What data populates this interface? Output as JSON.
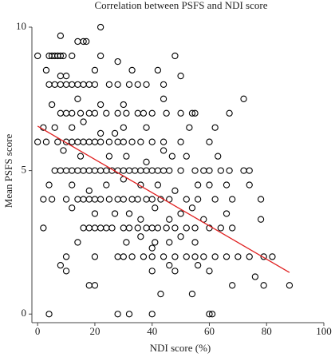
{
  "chart_data": {
    "type": "scatter",
    "title": "Correlation between PSFS and NDI score",
    "x_label": "NDI score (%)",
    "y_label": "Mean PSFS score",
    "x": [
      0,
      4,
      5,
      6,
      7,
      8,
      9,
      12,
      14,
      16,
      17,
      22,
      8,
      22,
      48,
      3,
      8,
      10,
      20,
      28,
      33,
      42,
      50,
      4,
      6,
      8,
      10,
      12,
      14,
      16,
      18,
      20,
      25,
      28,
      32,
      35,
      38,
      44,
      72,
      5,
      14,
      22,
      30,
      44,
      8,
      10,
      12,
      15,
      18,
      20,
      24,
      28,
      31,
      35,
      37,
      40,
      45,
      50,
      54,
      55,
      67,
      2,
      6,
      12,
      16,
      22,
      27,
      30,
      38,
      53,
      62,
      0,
      3,
      7,
      10,
      12,
      14,
      16,
      18,
      20,
      22,
      25,
      28,
      30,
      33,
      36,
      40,
      44,
      50,
      60,
      9,
      15,
      25,
      31,
      38,
      44,
      47,
      52,
      63,
      6,
      8,
      10,
      12,
      14,
      16,
      18,
      20,
      22,
      24,
      26,
      28,
      30,
      32,
      34,
      36,
      38,
      40,
      42,
      44,
      46,
      50,
      55,
      58,
      60,
      64,
      67,
      72,
      74,
      4,
      12,
      18,
      24,
      30,
      36,
      42,
      48,
      56,
      60,
      66,
      74,
      2,
      5,
      10,
      14,
      16,
      18,
      20,
      22,
      25,
      28,
      30,
      33,
      35,
      38,
      40,
      43,
      46,
      52,
      56,
      62,
      68,
      78,
      12,
      20,
      27,
      32,
      36,
      41,
      46,
      50,
      54,
      58,
      66,
      78,
      2,
      16,
      18,
      20,
      22,
      24,
      26,
      30,
      32,
      35,
      38,
      40,
      42,
      45,
      48,
      52,
      55,
      60,
      64,
      68,
      14,
      31,
      36,
      41,
      46,
      50,
      55,
      10,
      20,
      28,
      30,
      33,
      37,
      40,
      44,
      48,
      52,
      55,
      58,
      62,
      66,
      70,
      74,
      79,
      82,
      8,
      40,
      46,
      56,
      76,
      10,
      18,
      20,
      40,
      48,
      60,
      68,
      79,
      88,
      43,
      54,
      4,
      28,
      32,
      40,
      60,
      61
    ],
    "values": [
      9,
      9,
      9,
      9,
      9,
      9,
      9,
      9,
      9.5,
      9.5,
      9.5,
      10,
      9.7,
      9,
      9,
      8.5,
      8.3,
      8.3,
      8.5,
      8.8,
      8.5,
      8.5,
      8.3,
      8,
      8,
      8,
      8,
      8,
      8,
      8,
      8,
      8,
      8,
      8,
      8,
      8,
      8,
      8,
      7.5,
      7.3,
      7.5,
      7.3,
      7.3,
      7.5,
      7,
      7,
      7,
      7,
      7,
      7,
      7,
      7,
      7,
      7,
      7,
      7,
      7,
      7,
      7,
      7,
      7,
      6.5,
      6.5,
      6.5,
      6.7,
      6.3,
      6.3,
      6.5,
      6.5,
      6.5,
      6.5,
      6,
      6,
      6,
      6,
      6,
      6,
      6,
      6,
      6,
      6,
      6,
      6,
      6,
      6,
      6,
      6,
      6,
      6,
      6,
      5.7,
      5.5,
      5.5,
      5.5,
      5.3,
      5.7,
      5.5,
      5.5,
      5.5,
      5,
      5,
      5,
      5,
      5,
      5,
      5,
      5,
      5,
      5,
      5,
      5,
      5,
      5,
      5,
      5,
      5,
      5,
      5,
      5,
      5,
      5,
      5,
      5,
      5,
      5,
      5,
      5,
      5,
      4.5,
      4.5,
      4.3,
      4.5,
      4.7,
      4.5,
      4.5,
      4.3,
      4.5,
      4.5,
      4.5,
      4.5,
      4,
      4,
      4,
      4,
      4,
      4,
      4,
      4,
      4,
      4,
      4,
      4,
      4,
      4,
      4,
      4,
      4,
      4,
      4,
      4,
      4,
      4,
      3.7,
      3.5,
      3.5,
      3.5,
      3.3,
      3.7,
      3.3,
      3.5,
      3.7,
      3.3,
      3.5,
      3.3,
      3,
      3,
      3,
      3,
      3,
      3,
      3,
      3,
      3,
      3,
      3,
      3,
      3,
      3,
      3,
      3,
      3,
      3,
      3,
      3,
      2.5,
      2.5,
      2.7,
      2.5,
      2.5,
      2.7,
      2.5,
      2,
      2,
      2,
      2,
      2,
      2,
      2,
      2,
      2,
      2,
      2,
      2,
      2,
      2,
      2,
      2,
      2,
      2,
      1.7,
      2.3,
      1.7,
      1.7,
      1.3,
      1.5,
      1,
      1,
      1.5,
      1.5,
      1.5,
      1,
      1,
      1,
      0.7,
      0.7,
      0,
      0,
      0,
      0,
      0,
      0
    ],
    "color": "#000000",
    "fit": {
      "x": [
        0,
        88
      ],
      "y": [
        6.55,
        1.45
      ],
      "color": "#e02020"
    },
    "xlim": [
      -2,
      100
    ],
    "ylim": [
      -0.3,
      10
    ],
    "xticks": [
      0,
      20,
      40,
      60,
      80,
      100
    ],
    "yticks": [
      0,
      5,
      10
    ]
  }
}
